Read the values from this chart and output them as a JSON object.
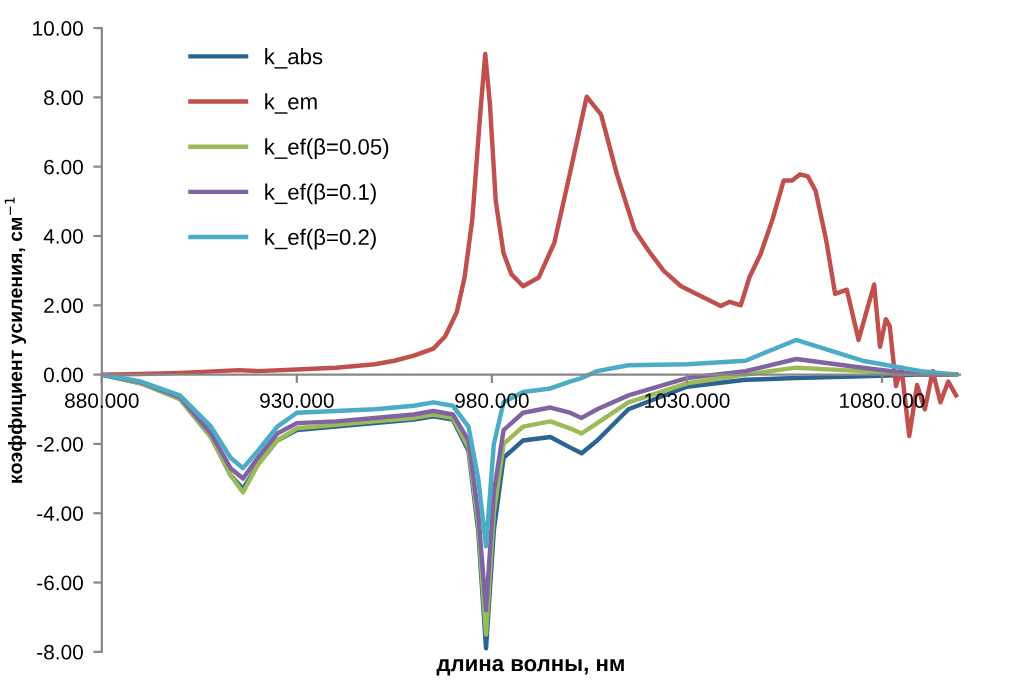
{
  "chart_data": {
    "type": "line",
    "xlabel": "длина волны, нм",
    "ylabel": "коэффициент усиления, см$^{−1}$",
    "xlim": [
      880,
      1100
    ],
    "ylim": [
      -8,
      10
    ],
    "xticks": [
      {
        "value": 880,
        "label": "880.000"
      },
      {
        "value": 930,
        "label": "930.000"
      },
      {
        "value": 980,
        "label": "980.000"
      },
      {
        "value": 1030,
        "label": "1030.000"
      },
      {
        "value": 1080,
        "label": "1080.000"
      }
    ],
    "yticks": [
      {
        "value": -8,
        "label": "-8.00"
      },
      {
        "value": -6,
        "label": "-6.00"
      },
      {
        "value": -4,
        "label": "-4.00"
      },
      {
        "value": -2,
        "label": "-2.00"
      },
      {
        "value": 0,
        "label": "0.00"
      },
      {
        "value": 2,
        "label": "2.00"
      },
      {
        "value": 4,
        "label": "4.00"
      },
      {
        "value": 6,
        "label": "6.00"
      },
      {
        "value": 8,
        "label": "8.00"
      },
      {
        "value": 10,
        "label": "10.00"
      }
    ],
    "grid": false,
    "legend": "top left",
    "marker": "none",
    "line_style": "solid",
    "series": [
      {
        "name": "k_abs",
        "color": "#2b6493",
        "x": [
          880,
          890,
          900,
          908,
          913,
          916.2,
          920,
          925,
          930,
          940,
          950,
          960,
          965,
          970,
          974,
          976.5,
          978.5,
          980.5,
          983,
          988,
          995,
          1000,
          1003,
          1007,
          1015,
          1030,
          1045,
          1058,
          1075,
          1090,
          1099
        ],
        "values": [
          0,
          -0.25,
          -0.7,
          -1.8,
          -2.9,
          -3.3,
          -2.6,
          -1.9,
          -1.6,
          -1.5,
          -1.4,
          -1.3,
          -1.2,
          -1.3,
          -2.2,
          -4.5,
          -7.9,
          -4.5,
          -2.4,
          -1.9,
          -1.8,
          -2.1,
          -2.27,
          -1.9,
          -1.0,
          -0.35,
          -0.15,
          -0.1,
          -0.05,
          0,
          0
        ]
      },
      {
        "name": "k_em",
        "color": "#c0504d",
        "x": [
          880,
          890,
          900,
          910,
          915,
          920,
          930,
          940,
          950,
          955,
          960,
          965,
          968,
          971,
          973,
          975,
          977,
          978.3,
          979.5,
          981,
          983,
          985,
          988,
          992,
          996,
          1000,
          1004.3,
          1008,
          1012,
          1016.6,
          1020,
          1024,
          1028.5,
          1033,
          1038.7,
          1041,
          1043.8,
          1046,
          1048.9,
          1052,
          1054.8,
          1057,
          1059,
          1061,
          1063,
          1065.7,
          1068,
          1071,
          1074,
          1076,
          1078,
          1079.5,
          1081,
          1082,
          1083.6,
          1085,
          1087,
          1089,
          1091,
          1093,
          1095,
          1097,
          1099
        ],
        "values": [
          0,
          0.02,
          0.05,
          0.1,
          0.13,
          0.1,
          0.15,
          0.2,
          0.3,
          0.4,
          0.55,
          0.75,
          1.1,
          1.8,
          2.8,
          4.5,
          7.5,
          9.25,
          7.8,
          5.0,
          3.5,
          2.9,
          2.55,
          2.8,
          3.8,
          5.8,
          8.02,
          7.5,
          5.8,
          4.17,
          3.6,
          3.0,
          2.55,
          2.3,
          1.98,
          2.1,
          2.0,
          2.8,
          3.48,
          4.5,
          5.6,
          5.6,
          5.78,
          5.72,
          5.3,
          3.88,
          2.33,
          2.45,
          1.0,
          1.8,
          2.6,
          0.8,
          1.6,
          1.4,
          -0.33,
          0.2,
          -1.77,
          -0.3,
          -1.0,
          0.1,
          -0.8,
          -0.2,
          -0.6
        ]
      },
      {
        "name": "k_ef(β=0.05)",
        "color": "#9bbb59",
        "x": [
          880,
          890,
          900,
          908,
          913,
          916.2,
          920,
          925,
          930,
          940,
          950,
          960,
          965,
          970,
          974,
          976.5,
          978.5,
          980.5,
          983,
          988,
          995,
          1000,
          1003,
          1007,
          1015,
          1030,
          1045,
          1058,
          1075,
          1090,
          1099
        ],
        "values": [
          0,
          -0.25,
          -0.7,
          -1.8,
          -2.9,
          -3.4,
          -2.6,
          -1.9,
          -1.55,
          -1.45,
          -1.35,
          -1.25,
          -1.15,
          -1.25,
          -2.1,
          -4.3,
          -7.5,
          -4.0,
          -2.0,
          -1.5,
          -1.35,
          -1.55,
          -1.7,
          -1.4,
          -0.8,
          -0.25,
          0.0,
          0.2,
          0.1,
          0,
          0
        ]
      },
      {
        "name": "k_ef(β=0.1)",
        "color": "#8064a2",
        "x": [
          880,
          890,
          900,
          908,
          913,
          916.2,
          920,
          925,
          930,
          940,
          950,
          960,
          965,
          970,
          974,
          976.5,
          978.5,
          980.5,
          983,
          988,
          995,
          1000,
          1003,
          1007,
          1015,
          1030,
          1045,
          1058,
          1075,
          1090,
          1099
        ],
        "values": [
          0,
          -0.22,
          -0.65,
          -1.7,
          -2.7,
          -3.0,
          -2.4,
          -1.7,
          -1.4,
          -1.35,
          -1.25,
          -1.15,
          -1.05,
          -1.15,
          -1.9,
          -4.0,
          -6.8,
          -3.4,
          -1.6,
          -1.1,
          -0.95,
          -1.1,
          -1.25,
          -1.0,
          -0.6,
          -0.1,
          0.1,
          0.45,
          0.2,
          0,
          0
        ]
      },
      {
        "name": "k_ef(β=0.2)",
        "color": "#4bacc6",
        "x": [
          880,
          890,
          900,
          908,
          913,
          916.2,
          920,
          925,
          930,
          940,
          950,
          960,
          965,
          970,
          974,
          976.5,
          978.5,
          980.5,
          983,
          988,
          995,
          1000,
          1003,
          1007,
          1015,
          1030,
          1045,
          1058,
          1075,
          1090,
          1099
        ],
        "values": [
          0,
          -0.2,
          -0.6,
          -1.5,
          -2.4,
          -2.7,
          -2.2,
          -1.5,
          -1.1,
          -1.05,
          -1.0,
          -0.9,
          -0.8,
          -0.9,
          -1.5,
          -3.0,
          -4.95,
          -2.0,
          -0.8,
          -0.5,
          -0.4,
          -0.2,
          -0.1,
          0.1,
          0.27,
          0.3,
          0.4,
          1.0,
          0.4,
          0.1,
          0
        ]
      }
    ]
  }
}
